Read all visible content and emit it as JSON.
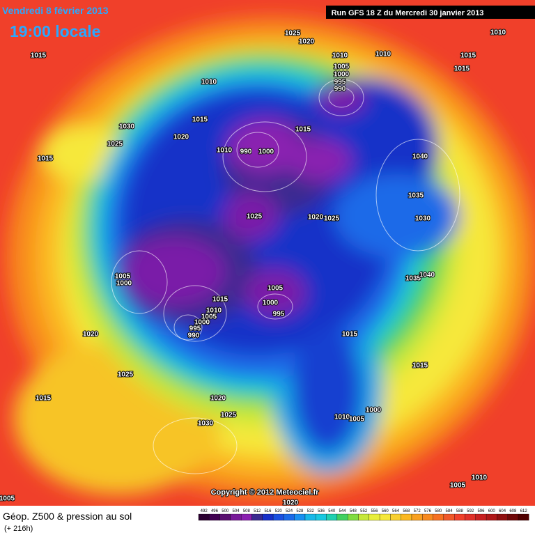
{
  "header": {
    "date": "Vendredi 8 février 2013",
    "time": "19:00 locale",
    "run": "Run GFS 18 Z du Mercredi 30 janvier 2013"
  },
  "isobar_labels": [
    "1025",
    "1020",
    "1010",
    "1015",
    "1010",
    "1010",
    "1015",
    "1015",
    "1005",
    "1000",
    "995",
    "990",
    "1010",
    "1015",
    "1030",
    "1020",
    "1025",
    "1015",
    "1015",
    "1010",
    "990",
    "1000",
    "1040",
    "1035",
    "1030",
    "1025",
    "1020",
    "1025",
    "1005",
    "1000",
    "1035",
    "1040",
    "1015",
    "1005",
    "1000",
    "995",
    "1010",
    "1005",
    "1000",
    "995",
    "990",
    "1020",
    "1015",
    "1015",
    "1025",
    "1015",
    "1020",
    "1025",
    "1000",
    "1010",
    "1005",
    "1030",
    "1010",
    "1005",
    "1005",
    "1020"
  ],
  "footer": {
    "title": "Géop. Z500 & pression au sol",
    "lead": "(+ 216h)",
    "copyright": "Copyright © 2012 Meteociel.fr"
  },
  "scale": [
    492,
    496,
    500,
    504,
    508,
    512,
    516,
    520,
    524,
    528,
    532,
    536,
    540,
    544,
    548,
    552,
    556,
    560,
    564,
    568,
    572,
    576,
    580,
    584,
    588,
    592,
    596,
    600,
    604,
    608,
    612
  ]
}
